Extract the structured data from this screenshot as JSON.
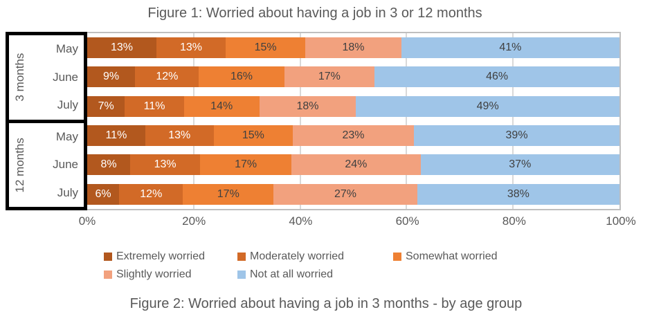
{
  "title": "Figure 1: Worried about having a job in 3 or 12 months",
  "caption": "Figure 2: Worried about having a job in 3 months - by age group",
  "colors": {
    "text": "#595959",
    "grid": "#D9D9D9",
    "plot_border": "#BFBFBF",
    "bracket": "#000000",
    "label_dark": "#404040",
    "label_light": "#FFFFFF"
  },
  "chart_data": {
    "type": "bar",
    "stacked": true,
    "orientation": "horizontal",
    "title": "Figure 1: Worried about having a job in 3 or 12 months",
    "xlim": [
      0,
      100
    ],
    "x_ticks": [
      {
        "label": "0%",
        "pos": 0
      },
      {
        "label": "20%",
        "pos": 20
      },
      {
        "label": "40%",
        "pos": 40
      },
      {
        "label": "60%",
        "pos": 60
      },
      {
        "label": "80%",
        "pos": 80
      },
      {
        "label": "100%",
        "pos": 100
      }
    ],
    "gridlines_pct": [
      20,
      40,
      60,
      80
    ],
    "legend_position": "bottom",
    "series": [
      {
        "name": "Extremely worried",
        "color": "#B2581E",
        "label_color": "#FFFFFF"
      },
      {
        "name": "Moderately worried",
        "color": "#D26A27",
        "label_color": "#FFFFFF"
      },
      {
        "name": "Somewhat worried",
        "color": "#EE8033",
        "label_color": "#404040"
      },
      {
        "name": "Slightly worried",
        "color": "#F2A17E",
        "label_color": "#404040"
      },
      {
        "name": "Not at all worried",
        "color": "#9FC5E8",
        "label_color": "#404040"
      }
    ],
    "groups": [
      {
        "label": "3 months",
        "rows": [
          {
            "label": "May",
            "values": [
              13,
              13,
              15,
              18,
              41
            ]
          },
          {
            "label": "June",
            "values": [
              9,
              12,
              16,
              17,
              46
            ]
          },
          {
            "label": "July",
            "values": [
              7,
              11,
              14,
              18,
              49
            ]
          }
        ]
      },
      {
        "label": "12 months",
        "rows": [
          {
            "label": "May",
            "values": [
              11,
              13,
              15,
              23,
              39
            ]
          },
          {
            "label": "June",
            "values": [
              8,
              13,
              17,
              24,
              37
            ]
          },
          {
            "label": "July",
            "values": [
              6,
              12,
              17,
              27,
              38
            ]
          }
        ]
      }
    ],
    "value_suffix": "%"
  },
  "legend": {
    "items": [
      {
        "label": "Extremely worried",
        "color": "#B2581E"
      },
      {
        "label": "Moderately worried",
        "color": "#D26A27"
      },
      {
        "label": "Somewhat worried",
        "color": "#EE8033"
      },
      {
        "label": "Slightly worried",
        "color": "#F2A17E"
      },
      {
        "label": "Not at all worried",
        "color": "#9FC5E8"
      }
    ]
  }
}
